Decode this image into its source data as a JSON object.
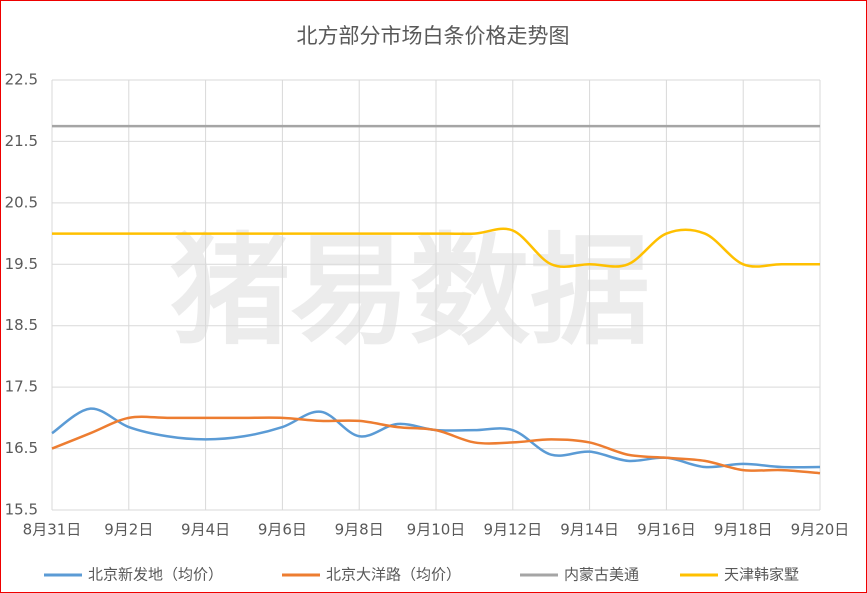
{
  "chart_data": {
    "type": "line",
    "title": "北方部分市场白条价格走势图",
    "watermark": "猪易数据",
    "categories": [
      "8月31日",
      null,
      "9月2日",
      null,
      "9月4日",
      null,
      "9月6日",
      null,
      "9月8日",
      null,
      "9月10日",
      null,
      "9月12日",
      null,
      "9月14日",
      null,
      "9月16日",
      null,
      "9月18日",
      null,
      "9月20日"
    ],
    "ylim": [
      15.5,
      22.5
    ],
    "yticks": [
      15.5,
      16.5,
      17.5,
      18.5,
      19.5,
      20.5,
      21.5,
      22.5
    ],
    "grid": true,
    "smooth": true,
    "legend": "bottom",
    "series": [
      {
        "name": "北京新发地（均价）",
        "color": "#5b9bd5",
        "values": [
          16.75,
          17.15,
          16.85,
          16.7,
          16.65,
          16.7,
          16.85,
          17.1,
          16.7,
          16.9,
          16.8,
          16.8,
          16.8,
          16.4,
          16.45,
          16.3,
          16.35,
          16.2,
          16.25,
          16.2,
          16.2
        ]
      },
      {
        "name": "北京大洋路（均价）",
        "color": "#ed7d31",
        "values": [
          16.5,
          16.75,
          17.0,
          17.0,
          17.0,
          17.0,
          17.0,
          16.95,
          16.95,
          16.85,
          16.8,
          16.6,
          16.6,
          16.65,
          16.6,
          16.4,
          16.35,
          16.3,
          16.15,
          16.15,
          16.1
        ]
      },
      {
        "name": "内蒙古美通",
        "color": "#a5a5a5",
        "values": [
          21.75,
          21.75,
          21.75,
          21.75,
          21.75,
          21.75,
          21.75,
          21.75,
          21.75,
          21.75,
          21.75,
          21.75,
          21.75,
          21.75,
          21.75,
          21.75,
          21.75,
          21.75,
          21.75,
          21.75,
          21.75
        ]
      },
      {
        "name": "天津韩家墅",
        "color": "#ffc000",
        "values": [
          20.0,
          20.0,
          20.0,
          20.0,
          20.0,
          20.0,
          20.0,
          20.0,
          20.0,
          20.0,
          20.0,
          20.0,
          20.05,
          19.5,
          19.5,
          19.5,
          20.0,
          20.0,
          19.5,
          19.5,
          19.5
        ]
      }
    ]
  }
}
